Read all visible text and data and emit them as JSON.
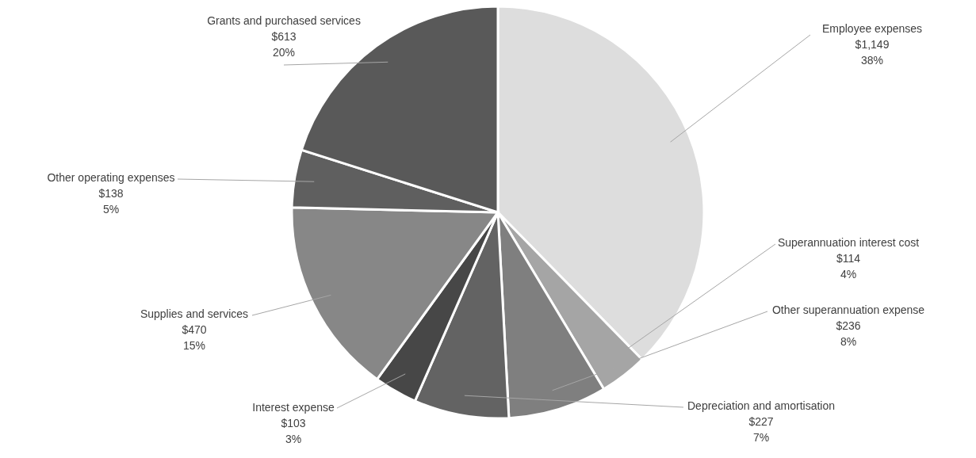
{
  "chart_data": {
    "type": "pie",
    "categories": [
      "Employee expenses",
      "Superannuation interest cost",
      "Other superannuation expense",
      "Depreciation and amortisation",
      "Interest expense",
      "Supplies and services",
      "Other operating expenses",
      "Grants and purchased services"
    ],
    "values": [
      1149,
      114,
      236,
      227,
      103,
      470,
      138,
      613
    ],
    "value_labels": [
      "$1,149\n38%",
      "$114\n4%",
      "$236\n8%",
      "$227\n7%",
      "$103\n3%",
      "$470\n15%",
      "$138\n5%",
      "$613\n20%"
    ],
    "colors": [
      "#dddddd",
      "#a5a5a5",
      "#7f7f7f",
      "#636363",
      "#474747",
      "#878787",
      "#5f5f5f",
      "#595959"
    ]
  }
}
